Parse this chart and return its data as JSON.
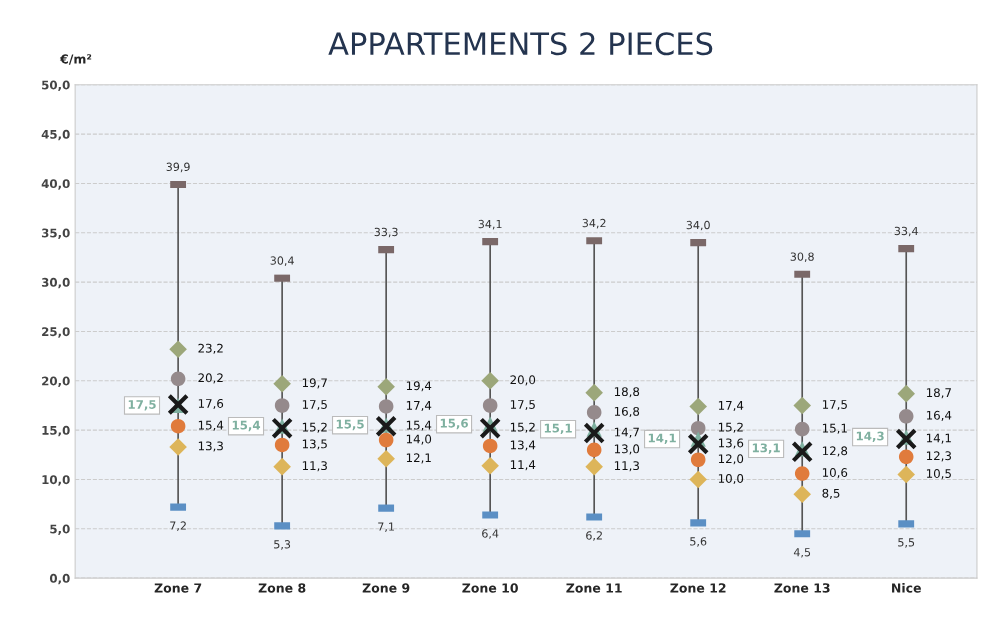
{
  "chart_data": {
    "type": "scatter",
    "title": "APPARTEMENTS 2 PIECES",
    "ylabel": "€/m²",
    "categories": [
      "Zone 7",
      "Zone 8",
      "Zone 9",
      "Zone 10",
      "Zone 11",
      "Zone 12",
      "Zone 13",
      "Nice"
    ],
    "ylim": [
      0,
      50
    ],
    "yticks": [
      {
        "value": 0,
        "label": "0,0"
      },
      {
        "value": 5,
        "label": "5,0"
      },
      {
        "value": 10,
        "label": "10,0"
      },
      {
        "value": 15,
        "label": "15,0"
      },
      {
        "value": 20,
        "label": "20,0"
      },
      {
        "value": 25,
        "label": "25,0"
      },
      {
        "value": 30,
        "label": "30,0"
      },
      {
        "value": 35,
        "label": "35,0"
      },
      {
        "value": 40,
        "label": "40,0"
      },
      {
        "value": 45,
        "label": "45,0"
      },
      {
        "value": 50,
        "label": "50,0"
      }
    ],
    "grid": "y",
    "legend": false,
    "series": [
      {
        "color": "#7a6868",
        "marker": "square",
        "values": [
          39.9,
          30.4,
          33.3,
          34.1,
          34.2,
          34.0,
          30.8,
          33.4
        ],
        "value_labels": [
          "39,9",
          "30,4",
          "33,3",
          "34,1",
          "34,2",
          "34,0",
          "30,8",
          "33,4"
        ]
      },
      {
        "color": "#9ca77a",
        "marker": "diamond",
        "values": [
          23.2,
          19.7,
          19.4,
          20.0,
          18.8,
          17.4,
          17.5,
          18.7
        ],
        "value_labels": [
          "23,2",
          "19,7",
          "19,4",
          "20,0",
          "18,8",
          "17,4",
          "17,5",
          "18,7"
        ]
      },
      {
        "color": "#958a8c",
        "marker": "circle",
        "values": [
          20.2,
          17.5,
          17.4,
          17.5,
          16.8,
          15.2,
          15.1,
          16.4
        ],
        "value_labels": [
          "20,2",
          "17,5",
          "17,4",
          "17,5",
          "16,8",
          "15,2",
          "15,1",
          "16,4"
        ]
      },
      {
        "color": "#7fb0a0",
        "marker": "triangle",
        "values": [
          17.5,
          15.4,
          15.5,
          15.6,
          15.1,
          14.1,
          13.1,
          14.3
        ],
        "value_labels": [
          "17,5",
          "15,4",
          "15,5",
          "15,6",
          "15,1",
          "14,1",
          "13,1",
          "14,3"
        ]
      },
      {
        "color": "#1a1a1a",
        "marker": "cross",
        "values": [
          17.6,
          15.2,
          15.4,
          15.2,
          14.7,
          13.6,
          12.8,
          14.1
        ],
        "value_labels": [
          "17,6",
          "15,2",
          "15,4",
          "15,2",
          "14,7",
          "13,6",
          "12,8",
          "14,1"
        ]
      },
      {
        "color": "#e07b3c",
        "marker": "circle",
        "values": [
          15.4,
          13.5,
          14.0,
          13.4,
          13.0,
          12.0,
          10.6,
          12.3
        ],
        "value_labels": [
          "15,4",
          "13,5",
          "14,0",
          "13,4",
          "13,0",
          "12,0",
          "10,6",
          "12,3"
        ]
      },
      {
        "color": "#ddb55a",
        "marker": "diamond",
        "values": [
          13.3,
          11.3,
          12.1,
          11.4,
          11.3,
          10.0,
          8.5,
          10.5
        ],
        "value_labels": [
          "13,3",
          "11,3",
          "12,1",
          "11,4",
          "11,3",
          "10,0",
          "8,5",
          "10,5"
        ]
      },
      {
        "color": "#5b8fc4",
        "marker": "square",
        "values": [
          7.2,
          5.3,
          7.1,
          6.4,
          6.2,
          5.6,
          4.5,
          5.5
        ],
        "value_labels": [
          "7,2",
          "5,3",
          "7,1",
          "6,4",
          "6,2",
          "5,6",
          "4,5",
          "5,5"
        ]
      }
    ]
  }
}
